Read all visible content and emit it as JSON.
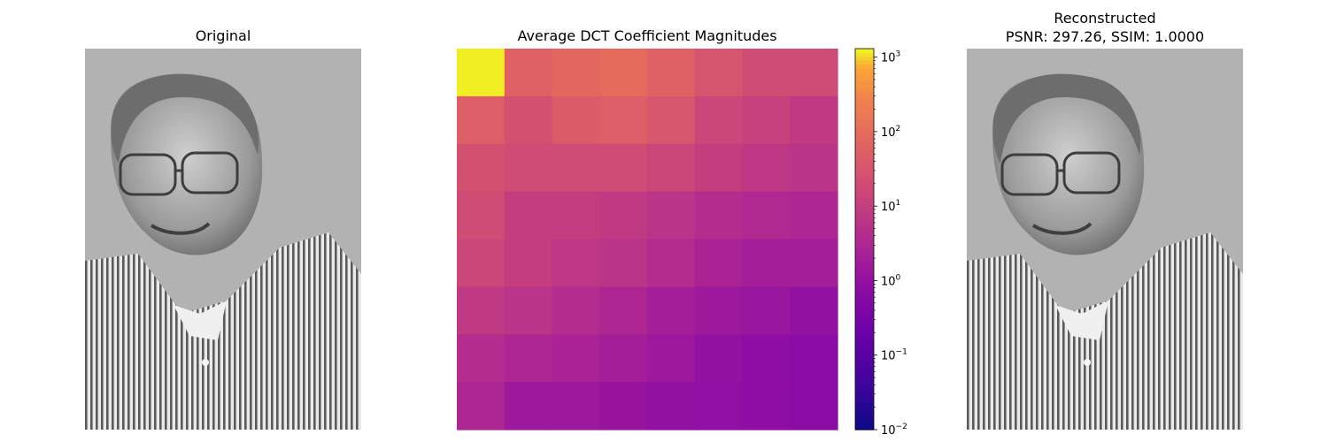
{
  "panels": {
    "original": {
      "title": "Original"
    },
    "reconstructed": {
      "title_line1": "Reconstructed",
      "title_line2": "PSNR: 297.26, SSIM: 1.0000"
    }
  },
  "chart_data": {
    "type": "heatmap",
    "title": "Average DCT Coefficient Magnitudes",
    "colormap": "plasma",
    "scale": "log",
    "clim": [
      0.01,
      1300
    ],
    "colorbar_ticks": [
      {
        "value": 0.01,
        "base": "10",
        "exp": "−2"
      },
      {
        "value": 0.1,
        "base": "10",
        "exp": "−1"
      },
      {
        "value": 1,
        "base": "10",
        "exp": "0"
      },
      {
        "value": 10,
        "base": "10",
        "exp": "1"
      },
      {
        "value": 100,
        "base": "10",
        "exp": "2"
      },
      {
        "value": 1000,
        "base": "10",
        "exp": "3"
      }
    ],
    "rows": 8,
    "cols": 8,
    "values": [
      [
        1200,
        60,
        80,
        100,
        60,
        30,
        20,
        20
      ],
      [
        50,
        25,
        45,
        50,
        35,
        15,
        12,
        8
      ],
      [
        25,
        20,
        20,
        20,
        15,
        10,
        7,
        6
      ],
      [
        20,
        10,
        10,
        8,
        6,
        4,
        3.5,
        3
      ],
      [
        15,
        10,
        7,
        6,
        4,
        2.5,
        2,
        2
      ],
      [
        8,
        6,
        4,
        3,
        2,
        1.5,
        1.3,
        1
      ],
      [
        4,
        3,
        2.5,
        2,
        1.5,
        1,
        0.8,
        0.7
      ],
      [
        3,
        1.5,
        1.5,
        1.2,
        1,
        0.9,
        0.8,
        0.7
      ]
    ]
  }
}
